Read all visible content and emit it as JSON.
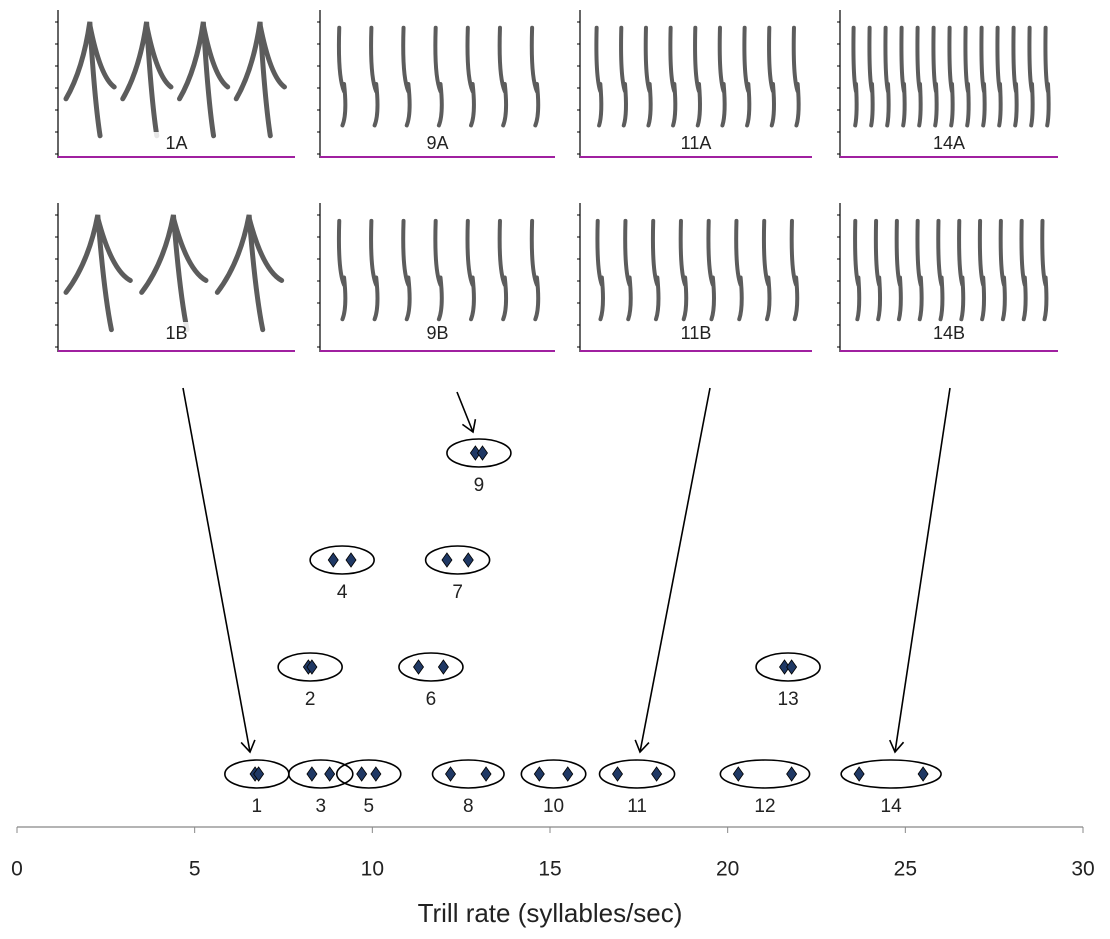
{
  "chart_data": {
    "type": "scatter",
    "panels": [
      "1A",
      "9A",
      "11A",
      "14A",
      "1B",
      "9B",
      "11B",
      "14B"
    ],
    "groups": [
      {
        "label": "1",
        "values": [
          6.7,
          6.8
        ]
      },
      {
        "label": "2",
        "values": [
          8.2,
          8.3
        ]
      },
      {
        "label": "3",
        "values": [
          8.3,
          8.8
        ]
      },
      {
        "label": "4",
        "values": [
          8.9,
          9.4
        ]
      },
      {
        "label": "5",
        "values": [
          9.7,
          10.1
        ]
      },
      {
        "label": "6",
        "values": [
          11.3,
          12.0
        ]
      },
      {
        "label": "7",
        "values": [
          12.1,
          12.7
        ]
      },
      {
        "label": "8",
        "values": [
          12.2,
          13.2
        ]
      },
      {
        "label": "9",
        "values": [
          12.9,
          13.1
        ]
      },
      {
        "label": "10",
        "values": [
          14.7,
          15.5
        ]
      },
      {
        "label": "11",
        "values": [
          16.9,
          18.0
        ]
      },
      {
        "label": "12",
        "values": [
          20.3,
          21.8
        ]
      },
      {
        "label": "13",
        "values": [
          21.6,
          21.8
        ]
      },
      {
        "label": "14",
        "values": [
          23.7,
          25.5
        ]
      }
    ],
    "point_color": "#1f3864",
    "xlabel": "Trill rate (syllables/sec)",
    "xlim": [
      0,
      30
    ],
    "xticks": [
      0,
      5,
      10,
      15,
      20,
      25,
      30
    ]
  }
}
